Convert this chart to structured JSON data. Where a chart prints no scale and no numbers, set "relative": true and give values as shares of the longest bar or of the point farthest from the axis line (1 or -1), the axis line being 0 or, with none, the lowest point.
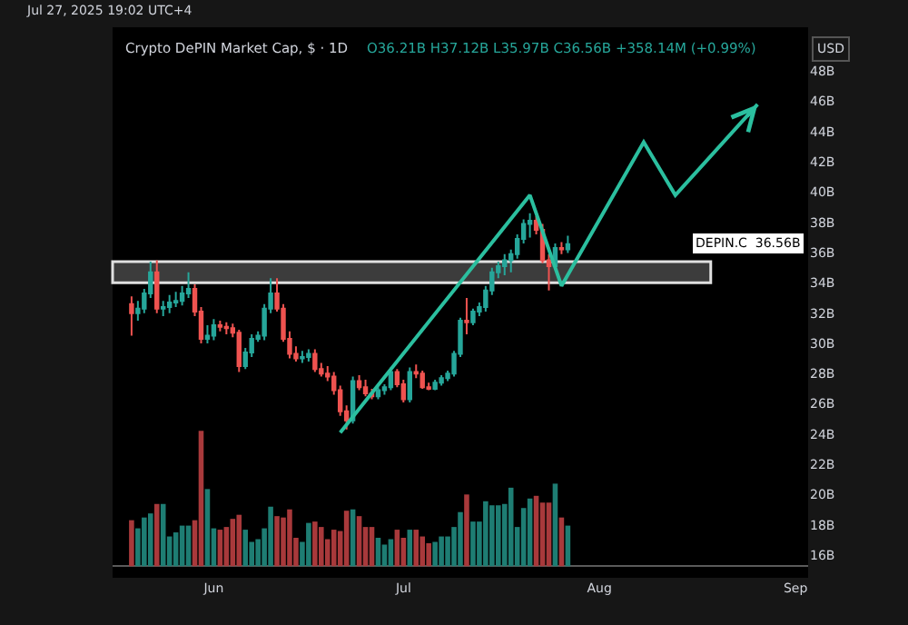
{
  "chart_data": [
    {
      "type": "candlestick",
      "title": "Crypto DePIN Market Cap, $ · 1D",
      "subtitle": "O36.21B H37.12B L35.97B C36.56B +358.14M (+0.99%)",
      "annotations": [
        "Jul 27, 2025 19:02 UTC+4",
        "USD",
        "DEPIN.C  36.56B"
      ],
      "tick_labels": "y",
      "x": [
        "2025-05-19",
        "2025-05-20",
        "2025-05-21",
        "2025-05-22",
        "2025-05-23",
        "2025-05-24",
        "2025-05-25",
        "2025-05-26",
        "2025-05-27",
        "2025-05-28",
        "2025-05-29",
        "2025-05-30",
        "2025-05-31",
        "2025-06-01",
        "2025-06-02",
        "2025-06-03",
        "2025-06-04",
        "2025-06-05",
        "2025-06-06",
        "2025-06-07",
        "2025-06-08",
        "2025-06-09",
        "2025-06-10",
        "2025-06-11",
        "2025-06-12",
        "2025-06-13",
        "2025-06-14",
        "2025-06-15",
        "2025-06-16",
        "2025-06-17",
        "2025-06-18",
        "2025-06-19",
        "2025-06-20",
        "2025-06-21",
        "2025-06-22",
        "2025-06-23",
        "2025-06-24",
        "2025-06-25",
        "2025-06-26",
        "2025-06-27",
        "2025-06-28",
        "2025-06-29",
        "2025-06-30",
        "2025-07-01",
        "2025-07-02",
        "2025-07-03",
        "2025-07-04",
        "2025-07-05",
        "2025-07-06",
        "2025-07-07",
        "2025-07-08",
        "2025-07-09",
        "2025-07-10",
        "2025-07-11",
        "2025-07-12",
        "2025-07-13",
        "2025-07-14",
        "2025-07-15",
        "2025-07-16",
        "2025-07-17",
        "2025-07-18",
        "2025-07-19",
        "2025-07-20",
        "2025-07-21",
        "2025-07-22",
        "2025-07-23",
        "2025-07-24",
        "2025-07-25",
        "2025-07-26",
        "2025-07-27"
      ],
      "ohlc": [
        [
          32.6,
          33.1,
          30.5,
          32.0
        ],
        [
          32.0,
          32.8,
          31.5,
          32.3
        ],
        [
          32.3,
          33.6,
          32.0,
          33.3
        ],
        [
          33.3,
          35.4,
          33.0,
          34.7
        ],
        [
          34.7,
          35.5,
          32.0,
          32.3
        ],
        [
          32.3,
          32.8,
          31.8,
          32.4
        ],
        [
          32.4,
          33.2,
          32.0,
          32.7
        ],
        [
          32.7,
          33.4,
          32.4,
          32.8
        ],
        [
          32.8,
          33.8,
          32.5,
          33.3
        ],
        [
          33.3,
          34.7,
          33.0,
          33.6
        ],
        [
          33.6,
          33.9,
          31.8,
          32.1
        ],
        [
          32.1,
          32.4,
          30.0,
          30.3
        ],
        [
          30.3,
          31.2,
          30.0,
          30.5
        ],
        [
          30.5,
          31.6,
          30.2,
          31.2
        ],
        [
          31.2,
          31.5,
          30.8,
          31.1
        ],
        [
          31.1,
          31.4,
          30.6,
          31.0
        ],
        [
          31.0,
          31.3,
          30.4,
          30.7
        ],
        [
          30.7,
          30.9,
          28.1,
          28.5
        ],
        [
          28.5,
          29.7,
          28.3,
          29.4
        ],
        [
          29.4,
          30.6,
          29.1,
          30.3
        ],
        [
          30.3,
          30.8,
          30.1,
          30.5
        ],
        [
          30.5,
          32.6,
          30.2,
          32.3
        ],
        [
          32.3,
          34.3,
          32.0,
          33.3
        ],
        [
          33.3,
          34.3,
          32.1,
          32.3
        ],
        [
          32.3,
          32.6,
          30.1,
          30.3
        ],
        [
          30.3,
          30.8,
          29.0,
          29.3
        ],
        [
          29.3,
          29.8,
          28.8,
          29.0
        ],
        [
          29.0,
          29.5,
          28.7,
          29.1
        ],
        [
          29.1,
          29.6,
          28.8,
          29.3
        ],
        [
          29.3,
          29.6,
          28.1,
          28.3
        ],
        [
          28.3,
          28.7,
          27.8,
          28.0
        ],
        [
          28.0,
          28.5,
          27.5,
          27.8
        ],
        [
          27.8,
          28.1,
          26.6,
          26.9
        ],
        [
          26.9,
          27.2,
          25.2,
          25.5
        ],
        [
          25.5,
          25.9,
          24.3,
          24.9
        ],
        [
          24.9,
          27.8,
          24.7,
          27.5
        ],
        [
          27.5,
          27.9,
          26.9,
          27.1
        ],
        [
          27.1,
          27.6,
          26.5,
          26.7
        ],
        [
          26.7,
          27.0,
          26.3,
          26.5
        ],
        [
          26.5,
          27.1,
          26.3,
          26.9
        ],
        [
          26.9,
          27.3,
          26.6,
          27.1
        ],
        [
          27.1,
          28.4,
          26.9,
          28.1
        ],
        [
          28.1,
          28.3,
          27.1,
          27.3
        ],
        [
          27.3,
          27.6,
          26.1,
          26.3
        ],
        [
          26.3,
          28.4,
          26.1,
          28.1
        ],
        [
          28.1,
          28.6,
          27.7,
          28.0
        ],
        [
          28.0,
          28.2,
          27.0,
          27.1
        ],
        [
          27.1,
          27.4,
          26.9,
          27.0
        ],
        [
          27.0,
          27.6,
          26.9,
          27.4
        ],
        [
          27.4,
          27.9,
          27.2,
          27.7
        ],
        [
          27.7,
          28.2,
          27.5,
          28.0
        ],
        [
          28.0,
          29.5,
          27.8,
          29.3
        ],
        [
          29.3,
          31.7,
          29.1,
          31.5
        ],
        [
          31.5,
          33.0,
          30.6,
          31.4
        ],
        [
          31.4,
          32.3,
          31.2,
          32.1
        ],
        [
          32.1,
          32.7,
          31.8,
          32.4
        ],
        [
          32.4,
          33.8,
          32.1,
          33.5
        ],
        [
          33.5,
          35.0,
          33.2,
          34.7
        ],
        [
          34.7,
          35.4,
          34.3,
          35.1
        ],
        [
          35.1,
          35.9,
          34.5,
          35.5
        ],
        [
          35.5,
          36.2,
          34.7,
          35.9
        ],
        [
          35.9,
          37.2,
          35.6,
          36.9
        ],
        [
          36.9,
          38.2,
          36.6,
          37.9
        ],
        [
          37.9,
          38.6,
          37.0,
          38.1
        ],
        [
          38.1,
          38.4,
          37.2,
          37.5
        ],
        [
          37.5,
          37.9,
          35.3,
          35.5
        ],
        [
          35.5,
          35.9,
          33.5,
          35.1
        ],
        [
          35.1,
          36.6,
          34.9,
          36.3
        ],
        [
          36.3,
          36.7,
          35.9,
          36.21
        ],
        [
          36.21,
          37.12,
          35.97,
          36.56
        ]
      ],
      "colors": [
        "#ef5350",
        "#26a69a",
        "#26a69a",
        "#26a69a",
        "#ef5350",
        "#26a69a",
        "#26a69a",
        "#26a69a",
        "#26a69a",
        "#26a69a",
        "#ef5350",
        "#ef5350",
        "#26a69a",
        "#26a69a",
        "#ef5350",
        "#ef5350",
        "#ef5350",
        "#ef5350",
        "#26a69a",
        "#26a69a",
        "#26a69a",
        "#26a69a",
        "#26a69a",
        "#ef5350",
        "#ef5350",
        "#ef5350",
        "#ef5350",
        "#26a69a",
        "#26a69a",
        "#ef5350",
        "#ef5350",
        "#ef5350",
        "#ef5350",
        "#ef5350",
        "#ef5350",
        "#26a69a",
        "#ef5350",
        "#ef5350",
        "#ef5350",
        "#26a69a",
        "#26a69a",
        "#26a69a",
        "#ef5350",
        "#ef5350",
        "#26a69a",
        "#ef5350",
        "#ef5350",
        "#ef5350",
        "#26a69a",
        "#26a69a",
        "#26a69a",
        "#26a69a",
        "#26a69a",
        "#ef5350",
        "#26a69a",
        "#26a69a",
        "#26a69a",
        "#26a69a",
        "#26a69a",
        "#26a69a",
        "#26a69a",
        "#26a69a",
        "#26a69a",
        "#26a69a",
        "#ef5350",
        "#ef5350",
        "#ef5350",
        "#26a69a",
        "#ef5350",
        "#26a69a"
      ],
      "series": [
        {
          "type": "line",
          "color": "#2bbf9f",
          "x": [
            "2025-06-21",
            "2025-07-21",
            "2025-07-26",
            "2025-08-08",
            "2025-08-13",
            "2025-08-26"
          ],
          "values": [
            24.1,
            39.8,
            33.8,
            43.3,
            39.8,
            45.8
          ]
        }
      ],
      "bands": [
        {
          "axis": "y",
          "from": 34.0,
          "to": 35.4,
          "color": "#3c3c3c"
        }
      ],
      "xlim": [
        "2025-05-16",
        "2025-09-03"
      ],
      "ylim": [
        14.5,
        50.9
      ],
      "yticks": [
        {
          "value": 16,
          "label": "16B"
        },
        {
          "value": 18,
          "label": "18B"
        },
        {
          "value": 20,
          "label": "20B"
        },
        {
          "value": 22,
          "label": "22B"
        },
        {
          "value": 24,
          "label": "24B"
        },
        {
          "value": 26,
          "label": "26B"
        },
        {
          "value": 28,
          "label": "28B"
        },
        {
          "value": 30,
          "label": "30B"
        },
        {
          "value": 32,
          "label": "32B"
        },
        {
          "value": 34,
          "label": "34B"
        },
        {
          "value": 36,
          "label": "36B"
        },
        {
          "value": 38,
          "label": "38B"
        },
        {
          "value": 40,
          "label": "40B"
        },
        {
          "value": 42,
          "label": "42B"
        },
        {
          "value": 44,
          "label": "44B"
        },
        {
          "value": 46,
          "label": "46B"
        },
        {
          "value": 48,
          "label": "48B"
        }
      ]
    },
    {
      "type": "bar",
      "relative": true,
      "tick_labels": "x",
      "xlim": [
        "2025-05-16",
        "2025-09-03"
      ],
      "xticks": [
        {
          "value": "2025-06-01",
          "label": "Jun"
        },
        {
          "value": "2025-07-01",
          "label": "Jul"
        },
        {
          "value": "2025-08-01",
          "label": "Aug"
        },
        {
          "value": "2025-09-01",
          "label": "Sep"
        }
      ],
      "values": [
        0.34,
        0.28,
        0.36,
        0.39,
        0.46,
        0.46,
        0.22,
        0.25,
        0.3,
        0.3,
        0.34,
        1,
        0.57,
        0.28,
        0.27,
        0.29,
        0.35,
        0.38,
        0.27,
        0.18,
        0.2,
        0.28,
        0.44,
        0.37,
        0.36,
        0.42,
        0.21,
        0.18,
        0.32,
        0.33,
        0.29,
        0.2,
        0.27,
        0.26,
        0.41,
        0.42,
        0.37,
        0.29,
        0.29,
        0.21,
        0.16,
        0.2,
        0.27,
        0.21,
        0.27,
        0.27,
        0.22,
        0.17,
        0.18,
        0.22,
        0.22,
        0.29,
        0.4,
        0.53,
        0.33,
        0.33,
        0.48,
        0.45,
        0.45,
        0.46,
        0.58,
        0.29,
        0.43,
        0.5,
        0.52,
        0.47,
        0.47,
        0.61,
        0.36,
        0.3
      ],
      "colors": [
        "#a8393b",
        "#1e7d73",
        "#1e7d73",
        "#1e7d73",
        "#a8393b",
        "#1e7d73",
        "#1e7d73",
        "#1e7d73",
        "#1e7d73",
        "#1e7d73",
        "#a8393b",
        "#a8393b",
        "#1e7d73",
        "#1e7d73",
        "#a8393b",
        "#a8393b",
        "#a8393b",
        "#a8393b",
        "#1e7d73",
        "#1e7d73",
        "#1e7d73",
        "#1e7d73",
        "#1e7d73",
        "#a8393b",
        "#a8393b",
        "#a8393b",
        "#a8393b",
        "#1e7d73",
        "#1e7d73",
        "#a8393b",
        "#a8393b",
        "#a8393b",
        "#a8393b",
        "#a8393b",
        "#a8393b",
        "#1e7d73",
        "#a8393b",
        "#a8393b",
        "#a8393b",
        "#1e7d73",
        "#1e7d73",
        "#1e7d73",
        "#a8393b",
        "#a8393b",
        "#1e7d73",
        "#a8393b",
        "#a8393b",
        "#a8393b",
        "#1e7d73",
        "#1e7d73",
        "#1e7d73",
        "#1e7d73",
        "#1e7d73",
        "#a8393b",
        "#1e7d73",
        "#1e7d73",
        "#1e7d73",
        "#1e7d73",
        "#1e7d73",
        "#1e7d73",
        "#1e7d73",
        "#1e7d73",
        "#1e7d73",
        "#1e7d73",
        "#a8393b",
        "#a8393b",
        "#a8393b",
        "#1e7d73",
        "#a8393b",
        "#1e7d73"
      ],
      "x": [
        "2025-05-19",
        "2025-05-20",
        "2025-05-21",
        "2025-05-22",
        "2025-05-23",
        "2025-05-24",
        "2025-05-25",
        "2025-05-26",
        "2025-05-27",
        "2025-05-28",
        "2025-05-29",
        "2025-05-30",
        "2025-05-31",
        "2025-06-01",
        "2025-06-02",
        "2025-06-03",
        "2025-06-04",
        "2025-06-05",
        "2025-06-06",
        "2025-06-07",
        "2025-06-08",
        "2025-06-09",
        "2025-06-10",
        "2025-06-11",
        "2025-06-12",
        "2025-06-13",
        "2025-06-14",
        "2025-06-15",
        "2025-06-16",
        "2025-06-17",
        "2025-06-18",
        "2025-06-19",
        "2025-06-20",
        "2025-06-21",
        "2025-06-22",
        "2025-06-23",
        "2025-06-24",
        "2025-06-25",
        "2025-06-26",
        "2025-06-27",
        "2025-06-28",
        "2025-06-29",
        "2025-06-30",
        "2025-07-01",
        "2025-07-02",
        "2025-07-03",
        "2025-07-04",
        "2025-07-05",
        "2025-07-06",
        "2025-07-07",
        "2025-07-08",
        "2025-07-09",
        "2025-07-10",
        "2025-07-11",
        "2025-07-12",
        "2025-07-13",
        "2025-07-14",
        "2025-07-15",
        "2025-07-16",
        "2025-07-17",
        "2025-07-18",
        "2025-07-19",
        "2025-07-20",
        "2025-07-21",
        "2025-07-22",
        "2025-07-23",
        "2025-07-24",
        "2025-07-25",
        "2025-07-26",
        "2025-07-27"
      ]
    }
  ]
}
